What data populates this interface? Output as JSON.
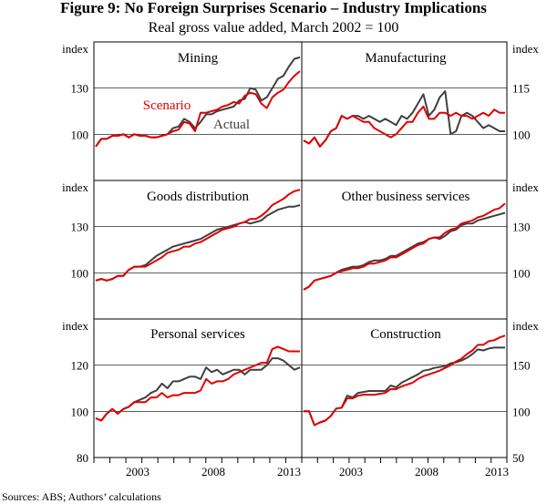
{
  "figure": {
    "title": "Figure 9: No Foreign Surprises Scenario – Industry Implications",
    "subtitle": "Real gross value added, March 2002 = 100",
    "source": "Sources:   ABS; Authors’ calculations",
    "x_ticks": [
      "2003",
      "2008",
      "2013"
    ],
    "colors": {
      "scenario": "#e00000",
      "actual": "#404040",
      "frame": "#000000"
    }
  },
  "chart_data": [
    {
      "type": "line",
      "title": "Mining",
      "unit": "index",
      "ylim": [
        70,
        160
      ],
      "yticks": [
        100,
        130
      ],
      "annotations": [
        {
          "text": "Scenario",
          "series": "Scenario",
          "color": "#e00000"
        },
        {
          "text": "Actual",
          "series": "Actual",
          "color": "#404040"
        }
      ],
      "series": [
        {
          "name": "Actual",
          "values": [
            92,
            97,
            97,
            99,
            99,
            100,
            98,
            100,
            99,
            99,
            98,
            98,
            99,
            100,
            104,
            105,
            110,
            108,
            104,
            108,
            113,
            113,
            115,
            116,
            117,
            118,
            122,
            123,
            130,
            129,
            122,
            124,
            130,
            136,
            138,
            144,
            149,
            150
          ]
        },
        {
          "name": "Scenario",
          "values": [
            92,
            97,
            97,
            99,
            99,
            100,
            98,
            100,
            99,
            99,
            98,
            98,
            99,
            100,
            102,
            103,
            108,
            107,
            102,
            114,
            114,
            115,
            116,
            118,
            119,
            121,
            120,
            125,
            127,
            126,
            120,
            117,
            124,
            127,
            129,
            134,
            138,
            141
          ]
        }
      ]
    },
    {
      "type": "line",
      "title": "Manufacturing",
      "unit": "index",
      "ylim": [
        85,
        130
      ],
      "yticks": [
        100,
        115
      ],
      "series": [
        {
          "name": "Actual",
          "values": [
            98,
            97,
            99,
            96,
            98,
            101,
            102,
            106,
            105,
            106,
            106,
            105,
            106,
            105,
            104,
            105,
            104,
            103,
            106,
            105,
            107,
            110,
            113,
            106,
            108,
            112,
            114,
            100,
            101,
            106,
            107,
            106,
            104,
            102,
            103,
            102,
            101,
            101
          ]
        },
        {
          "name": "Scenario",
          "values": [
            98,
            97,
            99,
            96,
            98,
            101,
            102,
            106,
            105,
            106,
            105,
            104,
            104,
            102,
            101,
            100,
            99,
            100,
            102,
            104,
            104,
            107,
            109,
            105,
            105,
            107,
            107,
            106,
            107,
            106,
            106,
            105,
            106,
            107,
            106,
            108,
            107,
            107
          ]
        }
      ]
    },
    {
      "type": "line",
      "title": "Goods distribution",
      "unit": "index",
      "ylim": [
        70,
        160
      ],
      "yticks": [
        100,
        130
      ],
      "series": [
        {
          "name": "Actual",
          "values": [
            95,
            96,
            95,
            96,
            98,
            98,
            102,
            104,
            104,
            105,
            108,
            111,
            113,
            115,
            117,
            118,
            119,
            120,
            121,
            122,
            124,
            126,
            128,
            129,
            130,
            131,
            132,
            133,
            132,
            133,
            134,
            137,
            139,
            141,
            142,
            143,
            143,
            144
          ]
        },
        {
          "name": "Scenario",
          "values": [
            95,
            96,
            95,
            96,
            98,
            98,
            102,
            104,
            104,
            104,
            106,
            108,
            110,
            113,
            114,
            115,
            117,
            117,
            119,
            120,
            122,
            124,
            126,
            128,
            129,
            130,
            132,
            133,
            135,
            135,
            137,
            140,
            144,
            146,
            148,
            151,
            153,
            154
          ]
        }
      ]
    },
    {
      "type": "line",
      "title": "Other business services",
      "unit": "index",
      "ylim": [
        70,
        160
      ],
      "yticks": [
        100,
        130
      ],
      "series": [
        {
          "name": "Actual",
          "values": [
            89,
            91,
            95,
            96,
            97,
            98,
            100,
            102,
            103,
            104,
            104,
            105,
            107,
            108,
            108,
            109,
            111,
            111,
            113,
            115,
            117,
            119,
            120,
            122,
            123,
            122,
            124,
            127,
            128,
            131,
            132,
            132,
            134,
            135,
            136,
            137,
            138,
            139
          ]
        },
        {
          "name": "Scenario",
          "values": [
            89,
            91,
            95,
            96,
            97,
            98,
            100,
            101,
            102,
            103,
            103,
            104,
            106,
            106,
            107,
            108,
            110,
            110,
            112,
            114,
            116,
            118,
            119,
            122,
            123,
            123,
            126,
            128,
            129,
            132,
            133,
            134,
            136,
            137,
            139,
            141,
            142,
            145
          ]
        }
      ]
    },
    {
      "type": "line",
      "title": "Personal services",
      "unit": "index",
      "ylim": [
        80,
        140
      ],
      "yticks": [
        80,
        100,
        120
      ],
      "series": [
        {
          "name": "Actual",
          "values": [
            97,
            96,
            99,
            101,
            99,
            101,
            102,
            104,
            105,
            106,
            108,
            109,
            112,
            110,
            113,
            113,
            114,
            115,
            115,
            114,
            119,
            117,
            118,
            116,
            117,
            118,
            118,
            116,
            118,
            118,
            118,
            120,
            123,
            123,
            122,
            120,
            118,
            119
          ]
        },
        {
          "name": "Scenario",
          "values": [
            97,
            96,
            99,
            101,
            99,
            101,
            102,
            104,
            104,
            104,
            106,
            106,
            108,
            106,
            107,
            107,
            108,
            108,
            108,
            109,
            114,
            112,
            113,
            113,
            114,
            116,
            117,
            118,
            119,
            120,
            121,
            121,
            127,
            128,
            127,
            126,
            126,
            126
          ]
        }
      ]
    },
    {
      "type": "line",
      "title": "Construction",
      "unit": "index",
      "ylim": [
        50,
        200
      ],
      "yticks": [
        50,
        100,
        150
      ],
      "series": [
        {
          "name": "Actual",
          "values": [
            100,
            100,
            85,
            88,
            90,
            95,
            103,
            104,
            117,
            115,
            120,
            121,
            122,
            122,
            122,
            122,
            128,
            126,
            131,
            134,
            137,
            140,
            144,
            145,
            147,
            148,
            149,
            152,
            153,
            155,
            158,
            162,
            167,
            166,
            168,
            169,
            169,
            169
          ]
        },
        {
          "name": "Scenario",
          "values": [
            100,
            100,
            85,
            88,
            90,
            95,
            103,
            104,
            114,
            114,
            117,
            118,
            118,
            118,
            119,
            120,
            124,
            124,
            127,
            129,
            131,
            135,
            138,
            140,
            142,
            144,
            147,
            150,
            154,
            157,
            162,
            166,
            172,
            172,
            176,
            177,
            180,
            182
          ]
        }
      ]
    }
  ]
}
